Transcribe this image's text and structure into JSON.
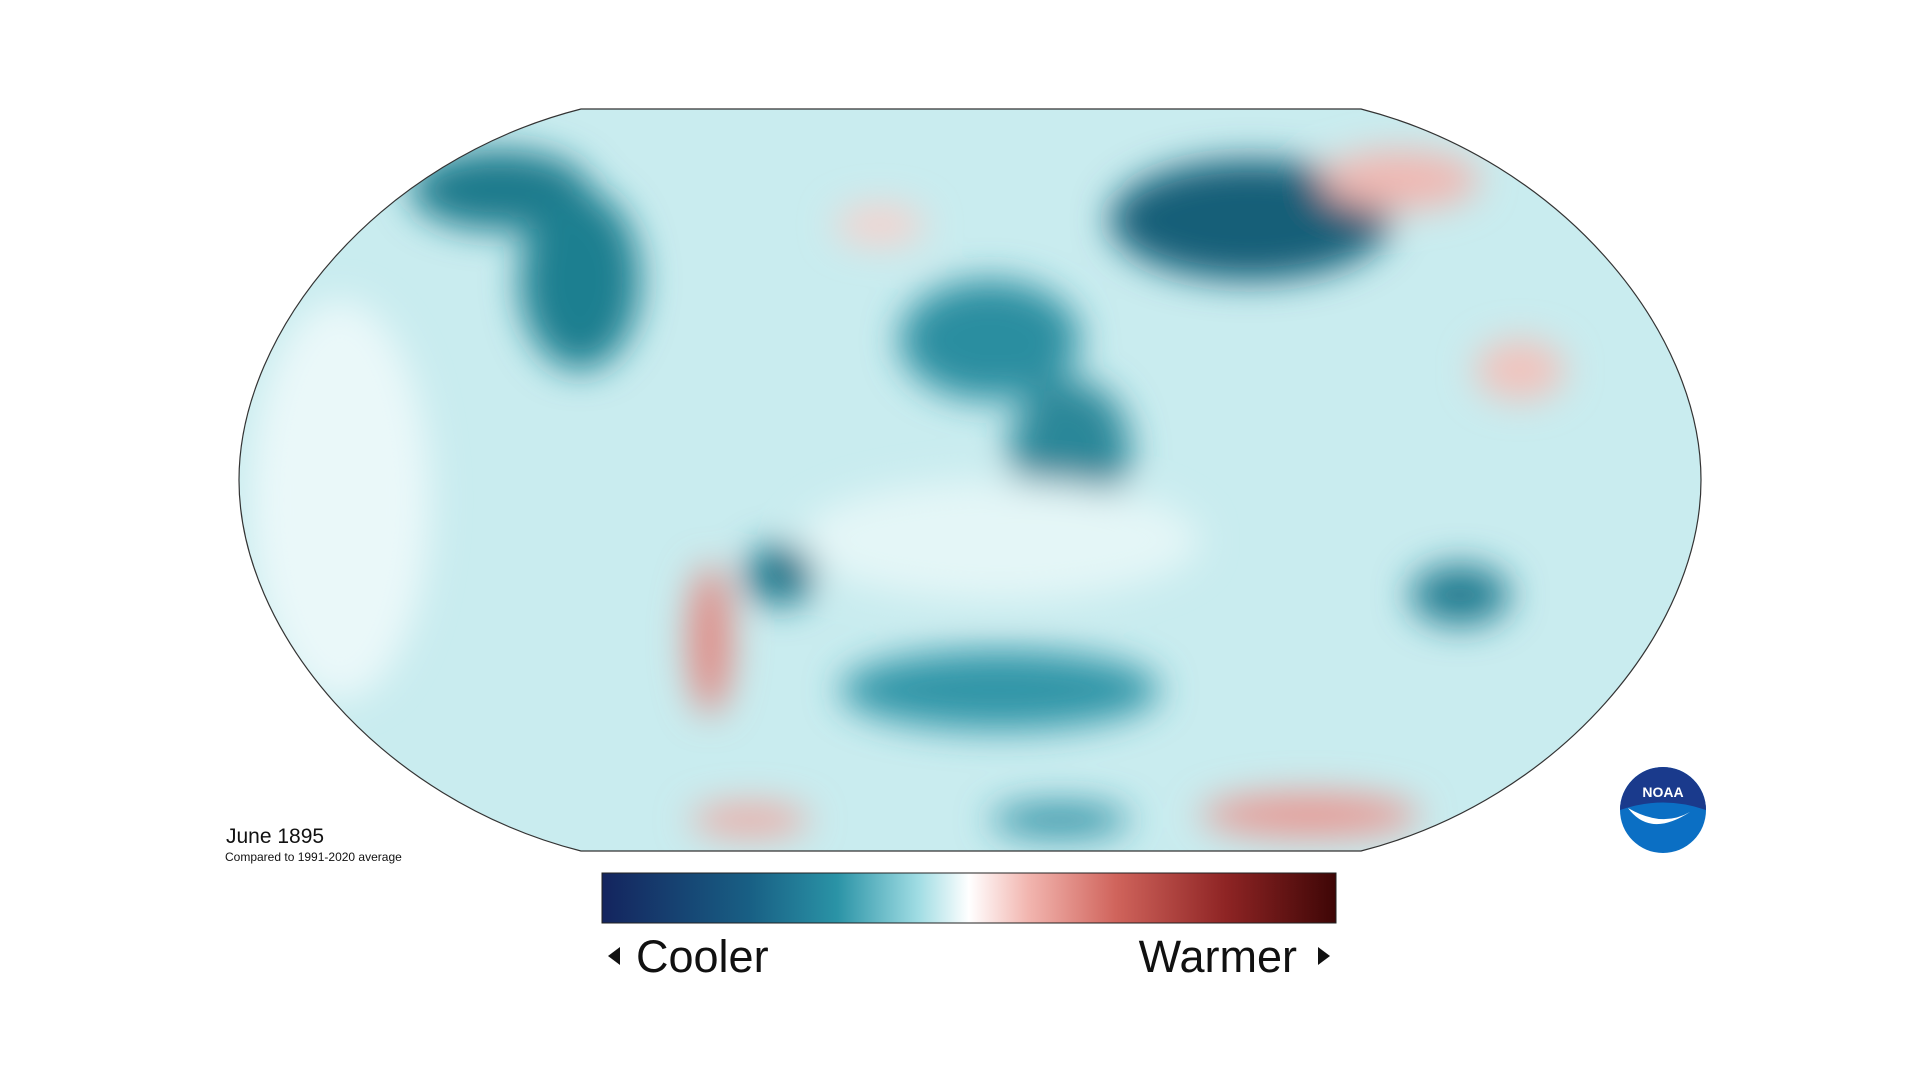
{
  "map": {
    "title": "June 1895",
    "subtitle": "Compared to 1991-2020 average",
    "legend": {
      "low_label": "Cooler",
      "high_label": "Warmer"
    },
    "logo": "NOAA"
  }
}
